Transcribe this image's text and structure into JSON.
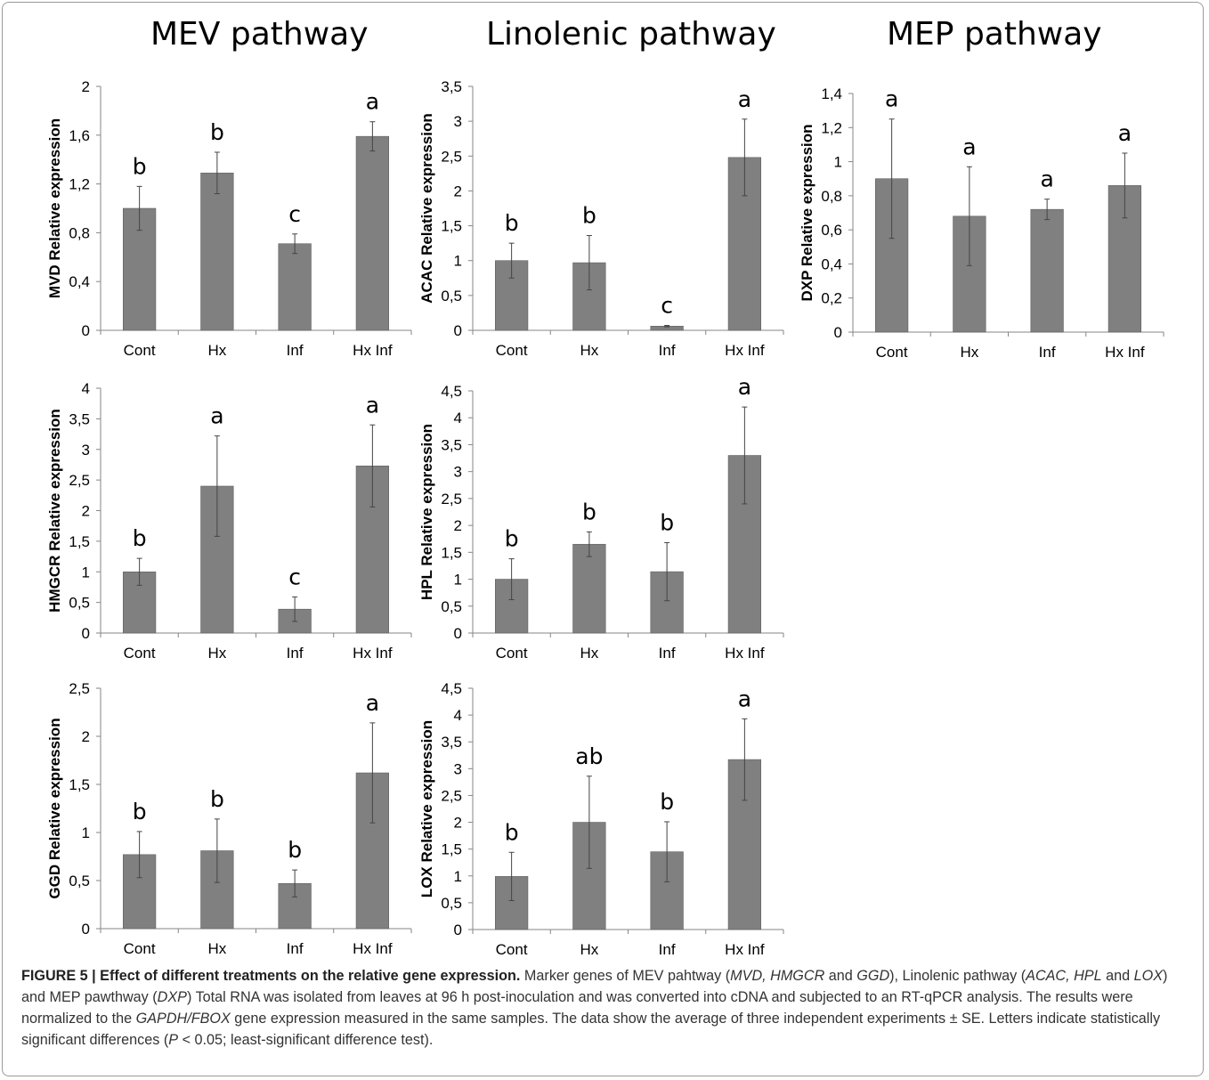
{
  "pathway_titles": [
    "MEV pathway",
    "Linolenic pathway",
    "MEP pathway"
  ],
  "chart_data": [
    {
      "type": "bar",
      "pathway": "MEV pathway",
      "categories": [
        "Cont",
        "Hx",
        "Inf",
        "Hx Inf"
      ],
      "values": [
        1.0,
        1.29,
        0.71,
        1.59
      ],
      "errors": [
        0.18,
        0.17,
        0.08,
        0.12
      ],
      "letters": [
        "b",
        "b",
        "c",
        "a"
      ],
      "ylabel": "MVD Relative expression",
      "ylim": [
        0,
        2
      ],
      "yticks": [
        "0",
        "0,4",
        "0,8",
        "1,2",
        "1,6",
        "2"
      ]
    },
    {
      "type": "bar",
      "pathway": "Linolenic pathway",
      "categories": [
        "Cont",
        "Hx",
        "Inf",
        "Hx Inf"
      ],
      "values": [
        1.0,
        0.97,
        0.06,
        2.48
      ],
      "errors": [
        0.25,
        0.39,
        0.01,
        0.55
      ],
      "letters": [
        "b",
        "b",
        "c",
        "a"
      ],
      "ylabel": "ACAC Relative expression",
      "ylim": [
        0,
        3.5
      ],
      "yticks": [
        "0",
        "0,5",
        "1",
        "1,5",
        "2",
        "2,5",
        "3",
        "3,5"
      ]
    },
    {
      "type": "bar",
      "pathway": "MEP pathway",
      "categories": [
        "Cont",
        "Hx",
        "Inf",
        "Hx Inf"
      ],
      "values": [
        0.9,
        0.68,
        0.72,
        0.86
      ],
      "errors": [
        0.35,
        0.29,
        0.06,
        0.19
      ],
      "letters": [
        "a",
        "a",
        "a",
        "a"
      ],
      "ylabel": "DXP Relative expression",
      "ylim": [
        0,
        1.4
      ],
      "yticks": [
        "0",
        "0,2",
        "0,4",
        "0,6",
        "0,8",
        "1",
        "1,2",
        "1,4"
      ]
    },
    {
      "type": "bar",
      "pathway": "MEV pathway",
      "categories": [
        "Cont",
        "Hx",
        "Inf",
        "Hx Inf"
      ],
      "values": [
        1.0,
        2.4,
        0.39,
        2.73
      ],
      "errors": [
        0.22,
        0.82,
        0.2,
        0.67
      ],
      "letters": [
        "b",
        "a",
        "c",
        "a"
      ],
      "ylabel": "HMGCR Relative expression",
      "ylim": [
        0,
        4
      ],
      "yticks": [
        "0",
        "0,5",
        "1",
        "1,5",
        "2",
        "2,5",
        "3",
        "3,5",
        "4"
      ]
    },
    {
      "type": "bar",
      "pathway": "Linolenic pathway",
      "categories": [
        "Cont",
        "Hx",
        "Inf",
        "Hx Inf"
      ],
      "values": [
        1.0,
        1.65,
        1.14,
        3.3
      ],
      "errors": [
        0.38,
        0.23,
        0.54,
        0.9
      ],
      "letters": [
        "b",
        "b",
        "b",
        "a"
      ],
      "ylabel": "HPL Relative expression",
      "ylim": [
        0,
        4.5
      ],
      "yticks": [
        "0",
        "0,5",
        "1",
        "1,5",
        "2",
        "2,5",
        "3",
        "3,5",
        "4",
        "4,5"
      ]
    },
    {
      "type": "bar",
      "pathway": "MEV pathway",
      "categories": [
        "Cont",
        "Hx",
        "Inf",
        "Hx Inf"
      ],
      "values": [
        0.77,
        0.81,
        0.47,
        1.62
      ],
      "errors": [
        0.24,
        0.33,
        0.14,
        0.52
      ],
      "letters": [
        "b",
        "b",
        "b",
        "a"
      ],
      "ylabel": "GGD Relative expression",
      "ylim": [
        0,
        2.5
      ],
      "yticks": [
        "0",
        "0,5",
        "1",
        "1,5",
        "2",
        "2,5"
      ]
    },
    {
      "type": "bar",
      "pathway": "Linolenic pathway",
      "categories": [
        "Cont",
        "Hx",
        "Inf",
        "Hx Inf"
      ],
      "values": [
        0.99,
        2.0,
        1.45,
        3.17
      ],
      "errors": [
        0.45,
        0.86,
        0.56,
        0.76
      ],
      "letters": [
        "b",
        "ab",
        "b",
        "a"
      ],
      "ylabel": "LOX  Relative expression",
      "ylim": [
        0,
        4.5
      ],
      "yticks": [
        "0",
        "0,5",
        "1",
        "1,5",
        "2",
        "2,5",
        "3",
        "3,5",
        "4",
        "4,5"
      ]
    }
  ],
  "colors": {
    "bar": "#808080",
    "axis": "#868686",
    "text": "#000000"
  },
  "caption": {
    "label": "FIGURE 5 | Effect of different treatments on the relative gene expression.",
    "t1": " Marker genes of MEV pahtway (",
    "i1": "MVD, HMGCR",
    "t2": " and ",
    "i2": "GGD",
    "t3": "), Linolenic pathway (",
    "i3": "ACAC, HPL",
    "t4": " and ",
    "i4": "LOX",
    "t5": ") and MEP pawthway (",
    "i5": "DXP",
    "t6": ") Total RNA was isolated from leaves at 96 h post-inoculation and was converted into cDNA and subjected to an RT-qPCR analysis. The results were normalized to the ",
    "i6": "GAPDH/FBOX",
    "t7": " gene expression measured in the same samples. The data show the average of three independent experiments ± SE. Letters indicate statistically significant differences (",
    "i7": "P",
    "t8": " < 0.05; least-significant difference test)."
  }
}
